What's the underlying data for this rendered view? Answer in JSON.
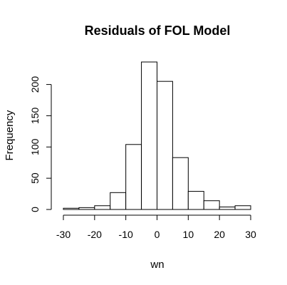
{
  "chart_data": {
    "type": "bar",
    "title": "Residuals of FOL Model",
    "xlabel": "wn",
    "ylabel": "Frequency",
    "bin_edges": [
      -30,
      -25,
      -20,
      -15,
      -10,
      -5,
      0,
      5,
      10,
      15,
      20,
      25,
      30
    ],
    "values": [
      2,
      3,
      6,
      27,
      104,
      236,
      205,
      83,
      29,
      14,
      4,
      6
    ],
    "xlim": [
      -30,
      30
    ],
    "ylim": [
      0,
      236
    ],
    "x_ticks": [
      -30,
      -20,
      -10,
      0,
      10,
      20,
      30
    ],
    "y_ticks": [
      0,
      50,
      100,
      150,
      200
    ],
    "grid": false,
    "legend": "none"
  }
}
